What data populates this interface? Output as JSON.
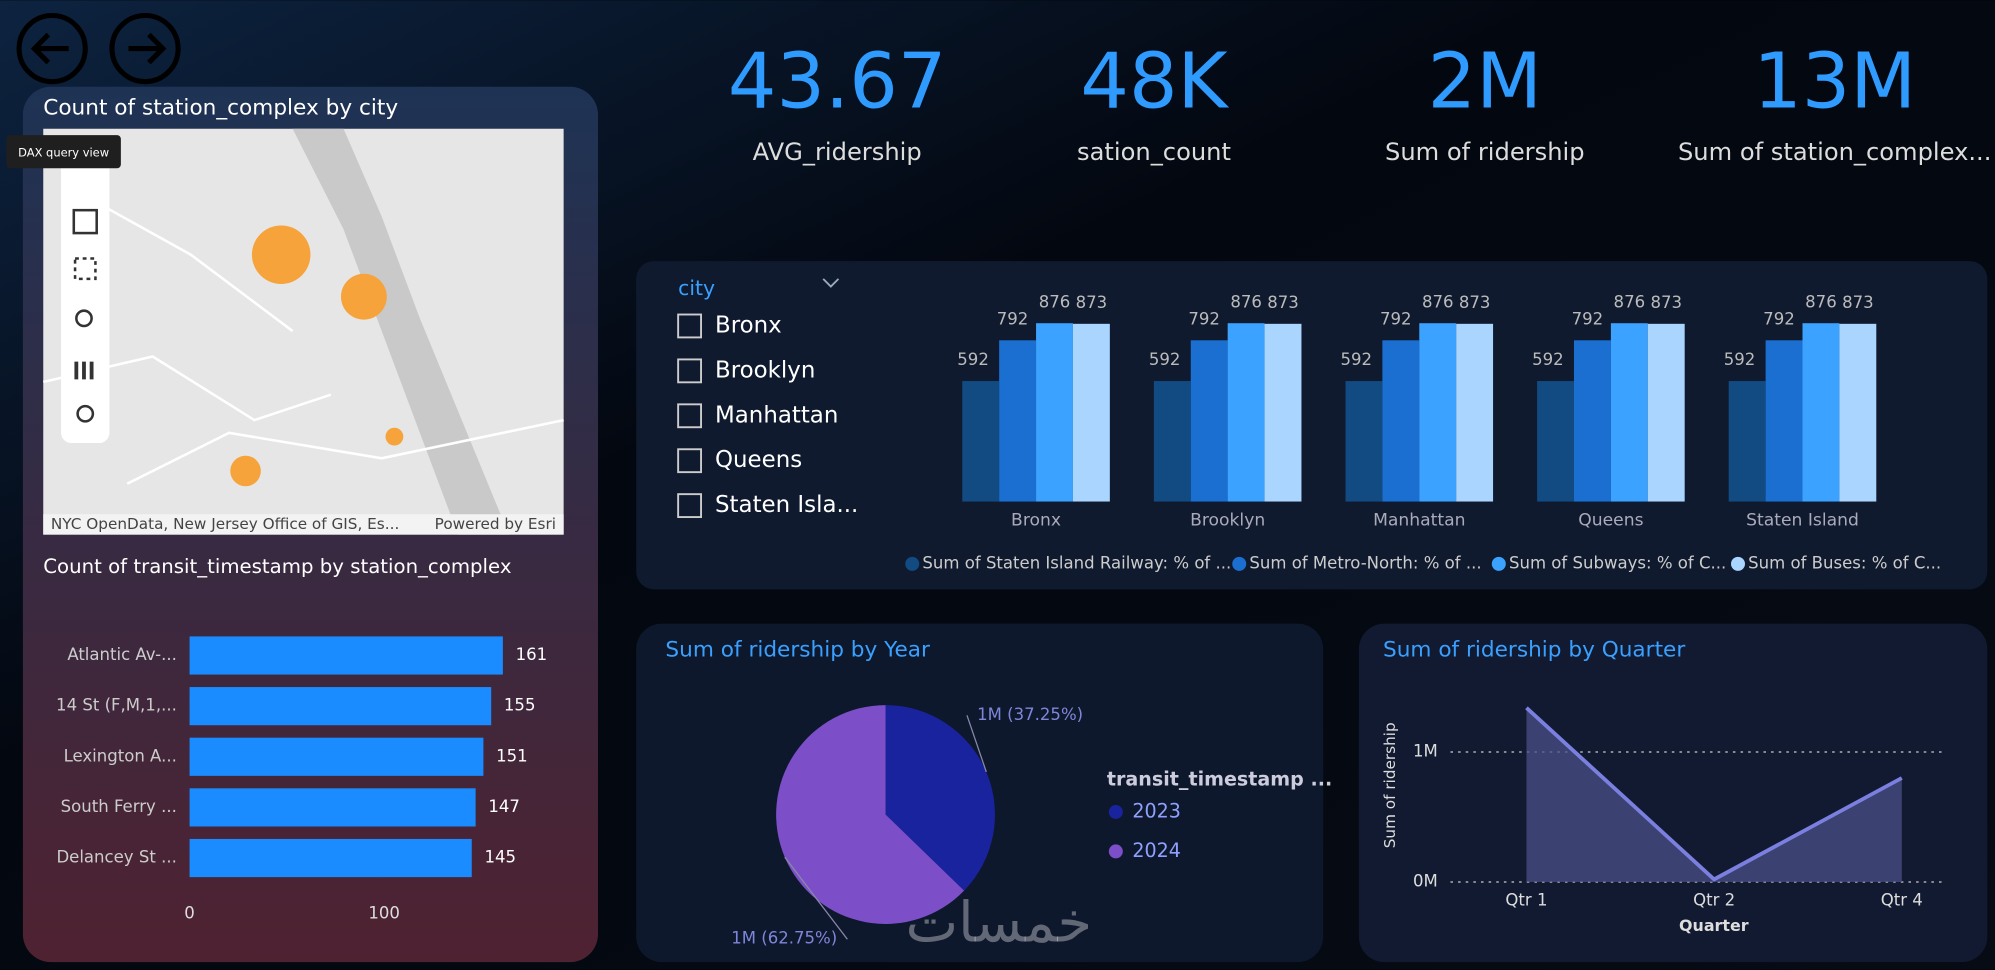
{
  "tooltip": "DAX query view",
  "kpis": [
    {
      "value": "43.67",
      "label": "AVG_ridership"
    },
    {
      "value": "48K",
      "label": "sation_count"
    },
    {
      "value": "2M",
      "label": "Sum of ridership"
    },
    {
      "value": "13M",
      "label": "Sum of station_complex..."
    }
  ],
  "map": {
    "title": "Count of station_complex by city",
    "attribution": "NYC OpenData, New Jersey Office of GIS, Es...",
    "powered_by": "Powered by Esri"
  },
  "slicer": {
    "title": "city",
    "items": [
      "Bronx",
      "Brooklyn",
      "Manhattan",
      "Queens",
      "Staten Isla..."
    ]
  },
  "watermark": "خمسات",
  "chart_data": [
    {
      "type": "hbar",
      "title": "Count of transit_timestamp by station_complex",
      "categories": [
        "Atlantic Av-...",
        "14 St (F,M,1,...",
        "Lexington A...",
        "South Ferry ...",
        "Delancey St ..."
      ],
      "values": [
        161,
        155,
        151,
        147,
        145
      ],
      "color": "#1a8cff",
      "xlim": [
        0,
        170
      ],
      "xticks": [
        0,
        100
      ]
    },
    {
      "type": "grouped_bar",
      "categories": [
        "Bronx",
        "Brooklyn",
        "Manhattan",
        "Queens",
        "Staten Island"
      ],
      "series": [
        {
          "name": "Sum of Staten Island Railway: % of ...",
          "color": "#124a82",
          "values": [
            592,
            592,
            592,
            592,
            592
          ]
        },
        {
          "name": "Sum of Metro-North: % of ...",
          "color": "#1a6fd0",
          "values": [
            792,
            792,
            792,
            792,
            792
          ]
        },
        {
          "name": "Sum of Subways: % of C...",
          "color": "#3ba2ff",
          "values": [
            876,
            876,
            876,
            876,
            876
          ]
        },
        {
          "name": "Sum of Buses: % of C...",
          "color": "#a9d5ff",
          "values": [
            873,
            873,
            873,
            873,
            873
          ]
        }
      ],
      "ylim": [
        0,
        900
      ]
    },
    {
      "type": "pie",
      "title": "Sum of ridership by Year",
      "legend_title": "transit_timestamp ...",
      "categories": [
        "2023",
        "2024"
      ],
      "values": [
        37.25,
        62.75
      ],
      "value_labels": [
        "1M (37.25%)",
        "1M (62.75%)"
      ],
      "colors": [
        "#1a239e",
        "#7c4fc8"
      ]
    },
    {
      "type": "area",
      "title": "Sum of ridership by Quarter",
      "categories": [
        "Qtr 1",
        "Qtr 2",
        "Qtr 4"
      ],
      "values": [
        1340000,
        20000,
        800000
      ],
      "ylim": [
        0,
        1400000
      ],
      "yticks": [
        {
          "value": 0,
          "label": "0M"
        },
        {
          "value": 1000000,
          "label": "1M"
        }
      ],
      "xlabel": "Quarter",
      "ylabel": "Sum of ridership",
      "color": "#7b7fe0",
      "grid": true
    }
  ]
}
